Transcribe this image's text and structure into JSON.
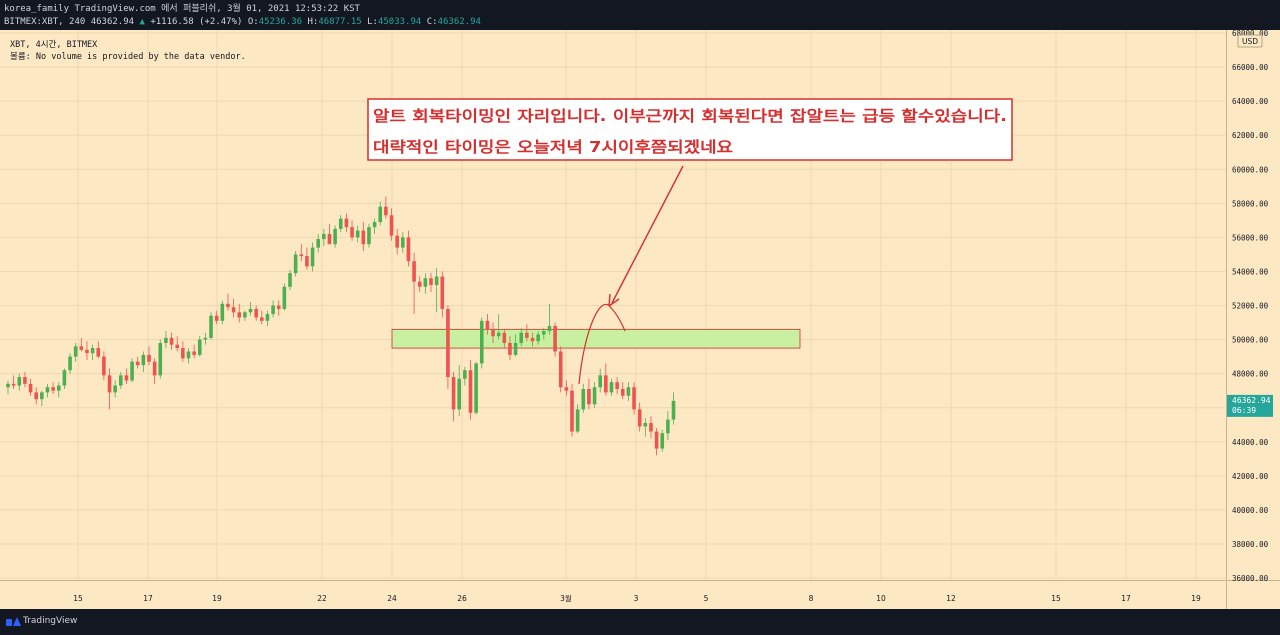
{
  "header": {
    "publish_line": "korea_family TradingView.com 에서 퍼블리쉬, 3월 01, 2021 12:53:22 KST",
    "symbol_line": "BITMEX:XBT, 240 46362.94",
    "change": "+1116.58 (+2.47%)",
    "o_label": "O:",
    "o_value": "45236.36",
    "h_label": "H:",
    "h_value": "46877.15",
    "l_label": "L:",
    "l_value": "45033.94",
    "c_label": "C:",
    "c_value": "46362.94"
  },
  "legend": {
    "line1": "XBT, 4시간, BITMEX",
    "line2": "볼륨: No volume is provided by the data vendor."
  },
  "annotation": {
    "line1": "알트 회복타이밍인 자리입니다. 이부근까지 회복된다면 잡알트는 급등 할수있습니다.",
    "line2": "대략적인 타이밍은 오늘저녁 7시이후쯤되겠네요"
  },
  "price_axis": {
    "currency": "USD",
    "last_price": "46362.94",
    "countdown": "06:39"
  },
  "footer": {
    "brand": "TradingView"
  },
  "colors": {
    "background": "#fde8c4",
    "up": "#26a69a",
    "candle_up": "#4caf50",
    "candle_down": "#ef5350",
    "zone": "#c8f0a0",
    "annotation_red": "#d32f2f"
  },
  "chart_data": {
    "type": "candlestick",
    "timeframe": "4h",
    "ylim": [
      35000,
      68000
    ],
    "y_ticks": [
      36000,
      38000,
      40000,
      42000,
      44000,
      46000,
      48000,
      50000,
      52000,
      54000,
      56000,
      58000,
      60000,
      62000,
      64000,
      66000,
      68000
    ],
    "x_ticks": [
      "15",
      "17",
      "19",
      "22",
      "24",
      "26",
      "3월",
      "3",
      "5",
      "8",
      "10",
      "12",
      "15",
      "17",
      "19"
    ],
    "zone": {
      "from": 49500,
      "to": 50600
    },
    "candles": [
      [
        47200,
        47600,
        46800,
        47400
      ],
      [
        47400,
        47900,
        47100,
        47300
      ],
      [
        47300,
        48000,
        47000,
        47800
      ],
      [
        47800,
        48100,
        47200,
        47400
      ],
      [
        47400,
        47700,
        46700,
        46900
      ],
      [
        46900,
        47200,
        46200,
        46500
      ],
      [
        46500,
        47000,
        46100,
        46900
      ],
      [
        46900,
        47400,
        46600,
        47200
      ],
      [
        47200,
        47500,
        46800,
        47000
      ],
      [
        47000,
        47500,
        46600,
        47300
      ],
      [
        47300,
        48300,
        47100,
        48200
      ],
      [
        48200,
        49200,
        48000,
        49000
      ],
      [
        49000,
        49800,
        48700,
        49600
      ],
      [
        49600,
        50100,
        49300,
        49400
      ],
      [
        49400,
        49900,
        48800,
        49200
      ],
      [
        49200,
        49700,
        48800,
        49500
      ],
      [
        49500,
        49900,
        48900,
        49000
      ],
      [
        49000,
        49300,
        47600,
        47900
      ],
      [
        47900,
        48300,
        45900,
        46900
      ],
      [
        46900,
        47600,
        46600,
        47300
      ],
      [
        47300,
        48100,
        47100,
        47900
      ],
      [
        47900,
        48300,
        47400,
        47600
      ],
      [
        47600,
        48900,
        47500,
        48700
      ],
      [
        48700,
        49000,
        48300,
        48500
      ],
      [
        48500,
        49300,
        48100,
        49100
      ],
      [
        49100,
        49600,
        48500,
        48700
      ],
      [
        48700,
        48900,
        47400,
        47900
      ],
      [
        47900,
        50000,
        47700,
        49800
      ],
      [
        49800,
        50500,
        49500,
        50100
      ],
      [
        50100,
        50400,
        49400,
        49700
      ],
      [
        49700,
        50200,
        49300,
        49500
      ],
      [
        49500,
        49900,
        48700,
        48900
      ],
      [
        48900,
        49500,
        48600,
        49300
      ],
      [
        49300,
        49700,
        48900,
        49100
      ],
      [
        49100,
        50200,
        49000,
        50000
      ],
      [
        50000,
        50400,
        49700,
        50100
      ],
      [
        50100,
        51600,
        50000,
        51400
      ],
      [
        51400,
        51700,
        50900,
        51100
      ],
      [
        51100,
        52300,
        50900,
        52100
      ],
      [
        52100,
        52700,
        51700,
        51900
      ],
      [
        51900,
        52400,
        51300,
        51600
      ],
      [
        51600,
        52100,
        51000,
        51300
      ],
      [
        51300,
        51700,
        51100,
        51600
      ],
      [
        51600,
        52200,
        51400,
        51800
      ],
      [
        51800,
        52000,
        51100,
        51300
      ],
      [
        51300,
        51700,
        50900,
        51100
      ],
      [
        51100,
        51700,
        50800,
        51500
      ],
      [
        51500,
        52300,
        51300,
        52000
      ],
      [
        52000,
        52300,
        51400,
        51800
      ],
      [
        51800,
        53300,
        51700,
        53100
      ],
      [
        53100,
        54100,
        52900,
        53900
      ],
      [
        53900,
        55200,
        53700,
        55000
      ],
      [
        55000,
        55600,
        54600,
        54900
      ],
      [
        54900,
        55400,
        54100,
        54300
      ],
      [
        54300,
        55700,
        54000,
        55400
      ],
      [
        55400,
        56200,
        55100,
        55900
      ],
      [
        55900,
        56500,
        55500,
        56200
      ],
      [
        56200,
        56800,
        55800,
        55600
      ],
      [
        55600,
        56700,
        55400,
        56500
      ],
      [
        56500,
        57300,
        56300,
        57100
      ],
      [
        57100,
        57400,
        56300,
        56600
      ],
      [
        56600,
        57000,
        55800,
        56000
      ],
      [
        56000,
        56700,
        55700,
        56400
      ],
      [
        56400,
        56900,
        55200,
        55600
      ],
      [
        55600,
        56800,
        55400,
        56600
      ],
      [
        56600,
        57100,
        56200,
        56900
      ],
      [
        56900,
        58100,
        56700,
        57800
      ],
      [
        57800,
        58400,
        57100,
        57300
      ],
      [
        57300,
        57700,
        55800,
        56100
      ],
      [
        56100,
        56500,
        55000,
        55400
      ],
      [
        55400,
        56300,
        55100,
        56000
      ],
      [
        56000,
        56400,
        54300,
        54600
      ],
      [
        54600,
        55100,
        51500,
        53400
      ],
      [
        53400,
        53700,
        52800,
        53100
      ],
      [
        53100,
        53900,
        52700,
        53600
      ],
      [
        53600,
        53900,
        52800,
        53200
      ],
      [
        53200,
        54200,
        51600,
        53700
      ],
      [
        53700,
        54000,
        51300,
        51800
      ],
      [
        51800,
        52000,
        47100,
        47800
      ],
      [
        47800,
        48100,
        45200,
        45900
      ],
      [
        45900,
        48500,
        45500,
        47700
      ],
      [
        47700,
        48400,
        47300,
        48200
      ],
      [
        48200,
        48800,
        45300,
        45700
      ],
      [
        45700,
        48700,
        45600,
        48600
      ],
      [
        48600,
        51300,
        48300,
        51100
      ],
      [
        51100,
        51500,
        50300,
        50600
      ],
      [
        50600,
        51000,
        49800,
        50200
      ],
      [
        50200,
        51500,
        50000,
        50400
      ],
      [
        50400,
        50600,
        49500,
        49800
      ],
      [
        49800,
        50200,
        48800,
        49100
      ],
      [
        49100,
        50300,
        49000,
        49800
      ],
      [
        49800,
        50700,
        49600,
        50400
      ],
      [
        50400,
        50900,
        49900,
        50100
      ],
      [
        50100,
        50400,
        49600,
        49900
      ],
      [
        49900,
        50500,
        49700,
        50300
      ],
      [
        50300,
        50700,
        50000,
        50500
      ],
      [
        50500,
        52100,
        50300,
        50800
      ],
      [
        50800,
        51000,
        49000,
        49300
      ],
      [
        49300,
        49600,
        46900,
        47200
      ],
      [
        47200,
        47600,
        46700,
        47000
      ],
      [
        47000,
        47400,
        44300,
        44600
      ],
      [
        44600,
        46200,
        44500,
        45900
      ],
      [
        45900,
        47400,
        45700,
        47100
      ],
      [
        47100,
        47700,
        45900,
        46200
      ],
      [
        46200,
        47500,
        46000,
        47200
      ],
      [
        47200,
        48300,
        46900,
        47900
      ],
      [
        47900,
        48600,
        46700,
        46900
      ],
      [
        46900,
        47700,
        46700,
        47500
      ],
      [
        47500,
        47800,
        46800,
        47100
      ],
      [
        47100,
        47500,
        46500,
        46700
      ],
      [
        46700,
        47500,
        46400,
        47200
      ],
      [
        47200,
        47500,
        45600,
        45900
      ],
      [
        45900,
        46300,
        44600,
        44900
      ],
      [
        44900,
        45400,
        44300,
        45100
      ],
      [
        45100,
        45500,
        44200,
        44600
      ],
      [
        44600,
        44800,
        43200,
        43600
      ],
      [
        43600,
        44700,
        43400,
        44500
      ],
      [
        44500,
        45800,
        44100,
        45300
      ],
      [
        45300,
        46900,
        45000,
        46400
      ]
    ]
  }
}
